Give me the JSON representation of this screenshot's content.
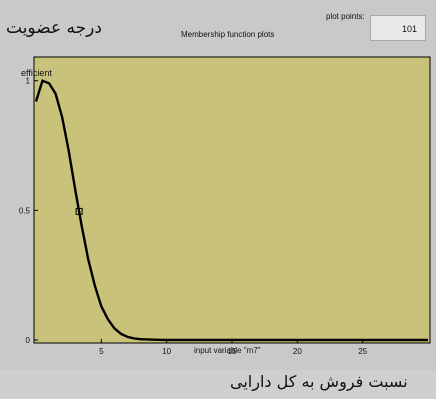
{
  "header": {
    "membership_degree": "درجه عضویت",
    "plot_title": "Membership function plots",
    "plot_points_label": "plot points:",
    "plot_points_value": "101"
  },
  "footer": {
    "label": "نسبت فروش به کل دارایی"
  },
  "chart_data": {
    "type": "line",
    "series": [
      {
        "name": "efficient",
        "x": [
          0,
          0.5,
          1,
          1.5,
          2,
          2.5,
          3,
          3.5,
          4,
          4.5,
          5,
          5.5,
          6,
          6.5,
          7,
          7.5,
          8,
          9,
          10,
          12,
          15,
          20,
          25,
          30
        ],
        "y": [
          0.92,
          1.0,
          0.99,
          0.95,
          0.86,
          0.73,
          0.58,
          0.44,
          0.31,
          0.21,
          0.13,
          0.08,
          0.045,
          0.024,
          0.012,
          0.006,
          0.003,
          0.001,
          0,
          0,
          0,
          0,
          0,
          0
        ]
      }
    ],
    "xlabel": "input variable \"m7\"",
    "ylabel": "",
    "xlim": [
      0,
      30
    ],
    "ylim": [
      0,
      1.08
    ],
    "xticks": [
      5,
      10,
      15,
      20,
      25
    ],
    "yticks": [
      0,
      0.5,
      1
    ],
    "xtick_labels": [
      "5",
      "10",
      "15",
      "20",
      "25"
    ],
    "ytick_labels": [
      "0",
      "0.5",
      "1"
    ],
    "marker_x": 3.3,
    "plot_color": "#c8c27a",
    "line_color": "#000000"
  }
}
